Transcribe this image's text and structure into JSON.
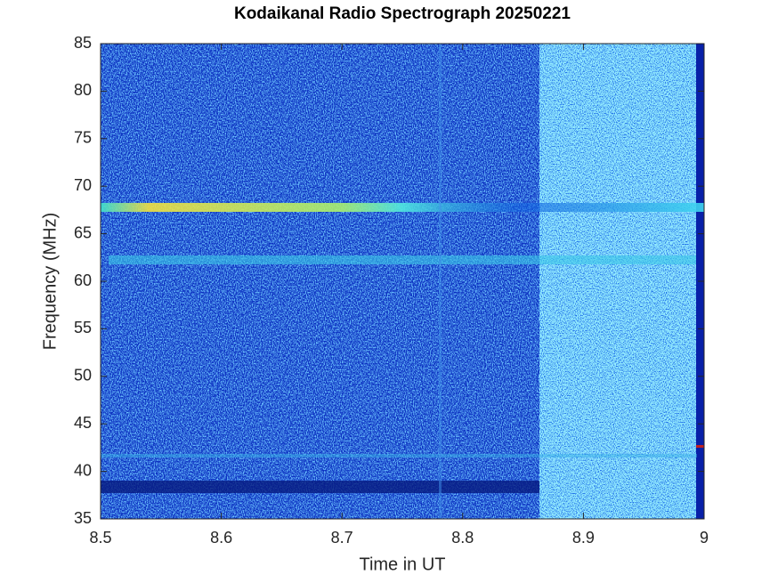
{
  "chart_data": {
    "type": "spectrogram",
    "title": "Kodaikanal Radio Spectrograph  20250221",
    "x_label": "Time in UT",
    "y_label": "Frequency (MHz)",
    "xlim": [
      8.5,
      9
    ],
    "xticks": [
      8.5,
      8.6,
      8.7,
      8.8,
      8.9,
      9
    ],
    "ylim": [
      35,
      85
    ],
    "yticks": [
      35,
      40,
      45,
      50,
      55,
      60,
      65,
      70,
      75,
      80,
      85
    ],
    "colormap": "jet"
  }
}
